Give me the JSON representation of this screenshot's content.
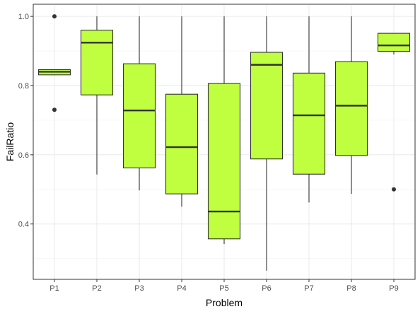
{
  "chart_data": {
    "type": "boxplot",
    "xlabel": "Problem",
    "ylabel": "FailRatio",
    "ylim": [
      0.24,
      1.035
    ],
    "yticks": [
      0.4,
      0.6,
      0.8,
      1.0
    ],
    "ytick_labels": [
      "0.4",
      "0.6",
      "0.8",
      "1.0"
    ],
    "grid": true,
    "fill_color": "#bfff3f",
    "line_color": "#333333",
    "categories": [
      "P1",
      "P2",
      "P3",
      "P4",
      "P5",
      "P6",
      "P7",
      "P8",
      "P9"
    ],
    "boxes": [
      {
        "category": "P1",
        "whisker_low": 0.83,
        "q1": 0.831,
        "median": 0.84,
        "q3": 0.846,
        "whisker_high": 0.846,
        "outliers": [
          1.0,
          0.73
        ]
      },
      {
        "category": "P2",
        "whisker_low": 0.543,
        "q1": 0.773,
        "median": 0.924,
        "q3": 0.96,
        "whisker_high": 1.0,
        "outliers": []
      },
      {
        "category": "P3",
        "whisker_low": 0.497,
        "q1": 0.562,
        "median": 0.728,
        "q3": 0.863,
        "whisker_high": 1.0,
        "outliers": []
      },
      {
        "category": "P4",
        "whisker_low": 0.45,
        "q1": 0.487,
        "median": 0.622,
        "q3": 0.775,
        "whisker_high": 1.0,
        "outliers": []
      },
      {
        "category": "P5",
        "whisker_low": 0.342,
        "q1": 0.357,
        "median": 0.436,
        "q3": 0.806,
        "whisker_high": 1.0,
        "outliers": []
      },
      {
        "category": "P6",
        "whisker_low": 0.265,
        "q1": 0.588,
        "median": 0.86,
        "q3": 0.896,
        "whisker_high": 1.0,
        "outliers": []
      },
      {
        "category": "P7",
        "whisker_low": 0.462,
        "q1": 0.544,
        "median": 0.714,
        "q3": 0.836,
        "whisker_high": 1.0,
        "outliers": []
      },
      {
        "category": "P8",
        "whisker_low": 0.487,
        "q1": 0.598,
        "median": 0.742,
        "q3": 0.869,
        "whisker_high": 1.0,
        "outliers": []
      },
      {
        "category": "P9",
        "whisker_low": 0.89,
        "q1": 0.899,
        "median": 0.916,
        "q3": 0.951,
        "whisker_high": 0.951,
        "outliers": [
          0.5
        ]
      }
    ]
  }
}
